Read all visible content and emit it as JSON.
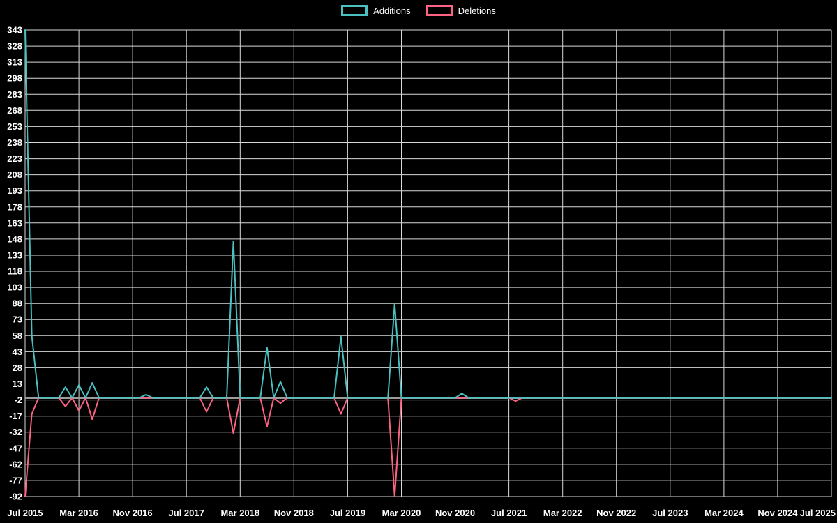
{
  "page": {
    "background": "#000000"
  },
  "legend": {
    "items": [
      {
        "label": "Additions",
        "color": "#4bc0c0"
      },
      {
        "label": "Deletions",
        "color": "#ff6384"
      }
    ]
  },
  "chart_data": {
    "type": "line",
    "title": "",
    "xlabel": "",
    "ylabel": "",
    "background": "#000000",
    "grid": {
      "show": true,
      "color": "#d8d8d8",
      "zero_line_color": "#9c9c9c"
    },
    "legend_position": "top-center",
    "x_axis": {
      "unit": "month",
      "months_total": 120,
      "tick_labels": [
        {
          "label": "Jul 2015",
          "month": 0
        },
        {
          "label": "Mar 2016",
          "month": 8
        },
        {
          "label": "Nov 2016",
          "month": 16
        },
        {
          "label": "Jul 2017",
          "month": 24
        },
        {
          "label": "Mar 2018",
          "month": 32
        },
        {
          "label": "Nov 2018",
          "month": 40
        },
        {
          "label": "Jul 2019",
          "month": 48
        },
        {
          "label": "Mar 2020",
          "month": 56
        },
        {
          "label": "Nov 2020",
          "month": 64
        },
        {
          "label": "Jul 2021",
          "month": 72
        },
        {
          "label": "Mar 2022",
          "month": 80
        },
        {
          "label": "Nov 2022",
          "month": 88
        },
        {
          "label": "Jul 2023",
          "month": 96
        },
        {
          "label": "Mar 2024",
          "month": 104
        },
        {
          "label": "Nov 2024",
          "month": 112
        },
        {
          "label": "Jul 2025",
          "month": 120
        }
      ]
    },
    "y_axis": {
      "min": -92,
      "max": 343,
      "step": 15,
      "tick_labels": [
        343,
        328,
        313,
        298,
        283,
        268,
        253,
        238,
        223,
        208,
        193,
        178,
        163,
        148,
        133,
        118,
        103,
        88,
        73,
        58,
        43,
        28,
        13,
        -2,
        -17,
        -32,
        -47,
        -62,
        -77,
        -92
      ]
    },
    "series": [
      {
        "name": "Additions",
        "color": "#4bc0c0",
        "default_value": 0,
        "spikes": {
          "0": 343,
          "1": 58,
          "6": 10,
          "8": 12,
          "10": 14,
          "18": 3,
          "27": 10,
          "31": 146,
          "36": 47,
          "38": 15,
          "47": 57,
          "55": 88,
          "65": 4
        }
      },
      {
        "name": "Deletions",
        "color": "#ff6384",
        "default_value": 0,
        "spikes": {
          "0": -92,
          "1": -15,
          "6": -8,
          "8": -12,
          "10": -20,
          "27": -13,
          "31": -33,
          "36": -27,
          "38": -5,
          "47": -15,
          "55": -92,
          "73": -3
        }
      }
    ]
  }
}
